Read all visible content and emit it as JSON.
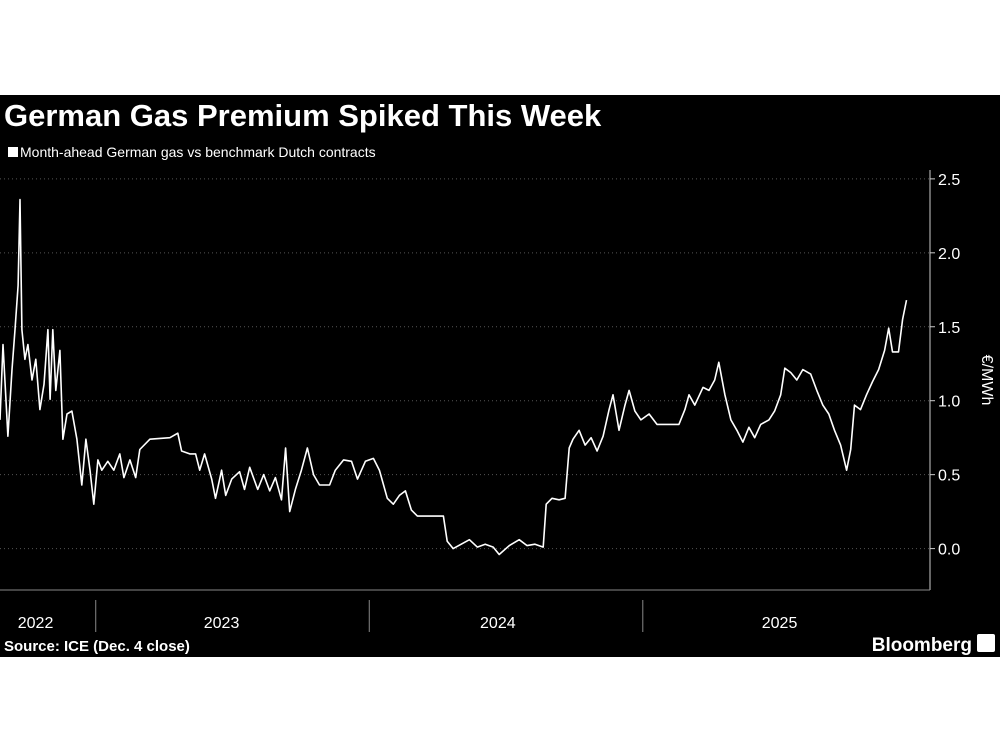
{
  "chart_data": {
    "type": "line",
    "title": "German Gas Premium Spiked This Week",
    "y_label": "€/MWh",
    "source": "Source: ICE (Dec. 4 close)",
    "brand": "Bloomberg",
    "xlim": [
      2022.65,
      2026.05
    ],
    "ylim": [
      -0.28,
      2.56
    ],
    "yticks": [
      {
        "value": 0,
        "label": "0.0"
      },
      0.5,
      {
        "value": 1,
        "label": "1.0"
      },
      1.5,
      {
        "value": 2,
        "label": "2.0"
      },
      2.5
    ],
    "xticks": [
      {
        "value": 2022.78,
        "label": "2022"
      },
      {
        "value": 2023.46,
        "label": "2023"
      },
      {
        "value": 2024.47,
        "label": "2024"
      },
      {
        "value": 2025.5,
        "label": "2025"
      }
    ],
    "year_boundaries": [
      2023,
      2024,
      2025
    ],
    "grid": true,
    "x": [
      2022.65,
      2022.661,
      2022.679,
      2022.694,
      2022.705,
      2022.716,
      2022.723,
      2022.73,
      2022.741,
      2022.752,
      2022.767,
      2022.781,
      2022.796,
      2022.811,
      2022.825,
      2022.833,
      2022.843,
      2022.854,
      2022.869,
      2022.88,
      2022.895,
      2022.913,
      2022.931,
      2022.949,
      2022.964,
      2022.979,
      2022.993,
      2023.008,
      2023.022,
      2023.044,
      2023.066,
      2023.088,
      2023.103,
      2023.125,
      2023.146,
      2023.161,
      2023.198,
      2023.271,
      2023.3,
      2023.314,
      2023.344,
      2023.365,
      2023.38,
      2023.398,
      2023.424,
      2023.438,
      2023.46,
      2023.475,
      2023.497,
      2023.526,
      2023.544,
      2023.563,
      2023.592,
      2023.614,
      2023.636,
      2023.657,
      2023.679,
      2023.694,
      2023.709,
      2023.73,
      2023.752,
      2023.774,
      2023.796,
      2023.818,
      2023.855,
      2023.876,
      2023.906,
      2023.935,
      2023.957,
      2023.986,
      2024.015,
      2024.037,
      2024.066,
      2024.088,
      2024.11,
      2024.132,
      2024.154,
      2024.176,
      2024.22,
      2024.271,
      2024.285,
      2024.307,
      2024.336,
      2024.366,
      2024.395,
      2024.424,
      2024.453,
      2024.475,
      2024.512,
      2024.548,
      2024.577,
      2024.606,
      2024.636,
      2024.647,
      2024.668,
      2024.694,
      2024.716,
      2024.731,
      2024.745,
      2024.767,
      2024.789,
      2024.811,
      2024.833,
      2024.855,
      2024.877,
      2024.891,
      2024.913,
      2024.935,
      2024.95,
      2024.971,
      2024.993,
      2025.023,
      2025.052,
      2025.074,
      2025.103,
      2025.132,
      2025.154,
      2025.169,
      2025.19,
      2025.22,
      2025.242,
      2025.263,
      2025.278,
      2025.3,
      2025.322,
      2025.344,
      2025.366,
      2025.388,
      2025.409,
      2025.431,
      2025.461,
      2025.482,
      2025.504,
      2025.519,
      2025.541,
      2025.563,
      2025.585,
      2025.614,
      2025.636,
      2025.658,
      2025.68,
      2025.701,
      2025.723,
      2025.745,
      2025.76,
      2025.774,
      2025.796,
      2025.818,
      2025.84,
      2025.862,
      2025.884,
      2025.899,
      2025.913,
      2025.935,
      2025.95,
      2025.964
    ],
    "series": [
      {
        "name": "Month-ahead German gas vs benchmark Dutch contracts",
        "color": "#ffffff",
        "values": [
          0.87,
          1.38,
          0.76,
          1.21,
          1.48,
          1.78,
          2.36,
          1.48,
          1.28,
          1.38,
          1.14,
          1.28,
          0.94,
          1.11,
          1.48,
          1.01,
          1.48,
          1.07,
          1.34,
          0.74,
          0.91,
          0.93,
          0.74,
          0.43,
          0.74,
          0.53,
          0.3,
          0.6,
          0.53,
          0.59,
          0.53,
          0.64,
          0.48,
          0.6,
          0.48,
          0.67,
          0.74,
          0.75,
          0.78,
          0.66,
          0.64,
          0.64,
          0.53,
          0.64,
          0.47,
          0.34,
          0.53,
          0.36,
          0.47,
          0.52,
          0.4,
          0.55,
          0.4,
          0.5,
          0.39,
          0.48,
          0.33,
          0.68,
          0.25,
          0.4,
          0.53,
          0.68,
          0.5,
          0.43,
          0.43,
          0.53,
          0.6,
          0.59,
          0.47,
          0.59,
          0.61,
          0.53,
          0.34,
          0.3,
          0.36,
          0.39,
          0.26,
          0.22,
          0.22,
          0.22,
          0.05,
          0.0,
          0.03,
          0.06,
          0.01,
          0.03,
          0.01,
          -0.04,
          0.02,
          0.06,
          0.02,
          0.03,
          0.01,
          0.3,
          0.34,
          0.33,
          0.34,
          0.68,
          0.74,
          0.8,
          0.7,
          0.75,
          0.66,
          0.76,
          0.94,
          1.04,
          0.8,
          0.97,
          1.07,
          0.93,
          0.87,
          0.91,
          0.84,
          0.84,
          0.84,
          0.84,
          0.94,
          1.04,
          0.97,
          1.09,
          1.07,
          1.14,
          1.26,
          1.04,
          0.87,
          0.8,
          0.72,
          0.82,
          0.75,
          0.84,
          0.87,
          0.93,
          1.04,
          1.22,
          1.19,
          1.14,
          1.21,
          1.18,
          1.07,
          0.97,
          0.91,
          0.8,
          0.7,
          0.53,
          0.67,
          0.97,
          0.94,
          1.04,
          1.13,
          1.21,
          1.34,
          1.49,
          1.33,
          1.33,
          1.55,
          1.68
        ]
      }
    ]
  }
}
